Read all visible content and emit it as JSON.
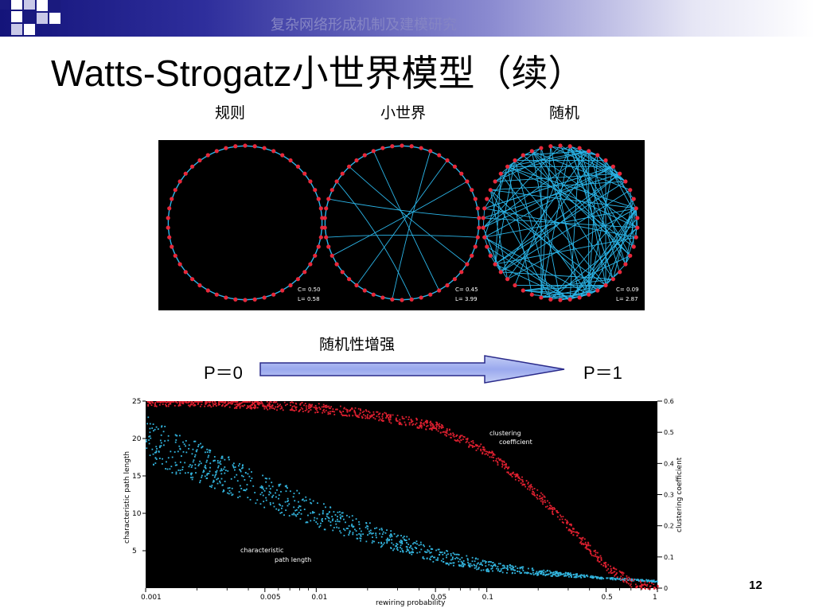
{
  "header": {
    "subtitle": "复杂网络形成机制及建模研究"
  },
  "slide": {
    "title": "Watts-Strogatz小世界模型（续）",
    "labels": {
      "regular": "规则",
      "small_world": "小世界",
      "random": "随机"
    },
    "networks": [
      {
        "c_label": "C= 0.50",
        "l_label": "L= 0.58"
      },
      {
        "c_label": "C= 0.45",
        "l_label": "L= 3.99"
      },
      {
        "c_label": "C= 0.09",
        "l_label": "L= 2.87"
      }
    ],
    "arrow": {
      "label": "随机性增强",
      "left": "P＝0",
      "right": "P＝1"
    },
    "page_number": "12"
  },
  "colors": {
    "node": "#e8283a",
    "edge": "#2bb5e8",
    "cc_series": "#e02030",
    "pl_series": "#33b6e0",
    "header_dark": "#14147a"
  },
  "chart_data": {
    "type": "scatter",
    "xlabel": "rewiring probability",
    "ylabel": "characteristic path length",
    "y2label": "clustering coefficient",
    "xscale": "log",
    "xlim": [
      0.001,
      1
    ],
    "ylim": [
      0,
      25
    ],
    "y2lim": [
      0,
      0.6
    ],
    "x_ticks": [
      {
        "v": 0.001,
        "label": "0.001"
      },
      {
        "v": 0.005,
        "label": "0.005"
      },
      {
        "v": 0.01,
        "label": "0.01"
      },
      {
        "v": 0.05,
        "label": "0.05"
      },
      {
        "v": 0.1,
        "label": "0.1"
      },
      {
        "v": 0.5,
        "label": "0.5"
      },
      {
        "v": 1,
        "label": "1"
      }
    ],
    "y_ticks": [
      5,
      10,
      15,
      20,
      25
    ],
    "y2_ticks": [
      {
        "v": 0,
        "label": "0"
      },
      {
        "v": 0.1,
        "label": "0.1"
      },
      {
        "v": 0.2,
        "label": "0.2"
      },
      {
        "v": 0.3,
        "label": "0.3"
      },
      {
        "v": 0.4,
        "label": "0.4"
      },
      {
        "v": 0.5,
        "label": "0.5"
      },
      {
        "v": 0.6,
        "label": "0.6"
      }
    ],
    "annotations": {
      "cc": [
        "clustering",
        "coefficient"
      ],
      "pl": [
        "characteristic",
        "path length"
      ]
    },
    "series": [
      {
        "name": "clustering coefficient",
        "axis": "right",
        "x": [
          0.001,
          0.002,
          0.005,
          0.01,
          0.02,
          0.05,
          0.1,
          0.2,
          0.3,
          0.5,
          0.7,
          1
        ],
        "values": [
          0.6,
          0.6,
          0.59,
          0.58,
          0.56,
          0.52,
          0.44,
          0.3,
          0.2,
          0.07,
          0.02,
          0
        ]
      },
      {
        "name": "characteristic path length",
        "axis": "left",
        "x": [
          0.001,
          0.002,
          0.005,
          0.01,
          0.02,
          0.05,
          0.1,
          0.2,
          0.5,
          1
        ],
        "values": [
          20,
          17,
          13,
          10,
          7.5,
          4.5,
          3,
          2.2,
          1.4,
          1
        ]
      }
    ]
  }
}
